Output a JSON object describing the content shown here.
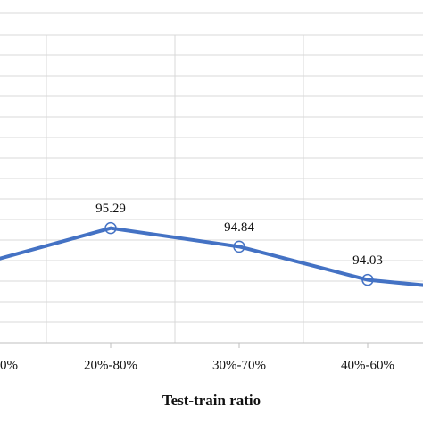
{
  "chart_data": {
    "type": "line",
    "x_label": "Test-train ratio",
    "categories": [
      "0%",
      "20%-80%",
      "30%-70%",
      "40%-60%",
      null
    ],
    "series": [
      {
        "color": "#4472c4",
        "values": [
          94.43,
          95.29,
          94.84,
          94.03,
          93.73
        ]
      }
    ],
    "ylim": [
      92.5,
      100
    ],
    "yticks": [
      92.5,
      93,
      93.5,
      94,
      94.5,
      95,
      95.5,
      96,
      96.5,
      97,
      97.5,
      98,
      98.5,
      99,
      99.5,
      100
    ],
    "grid": true
  }
}
